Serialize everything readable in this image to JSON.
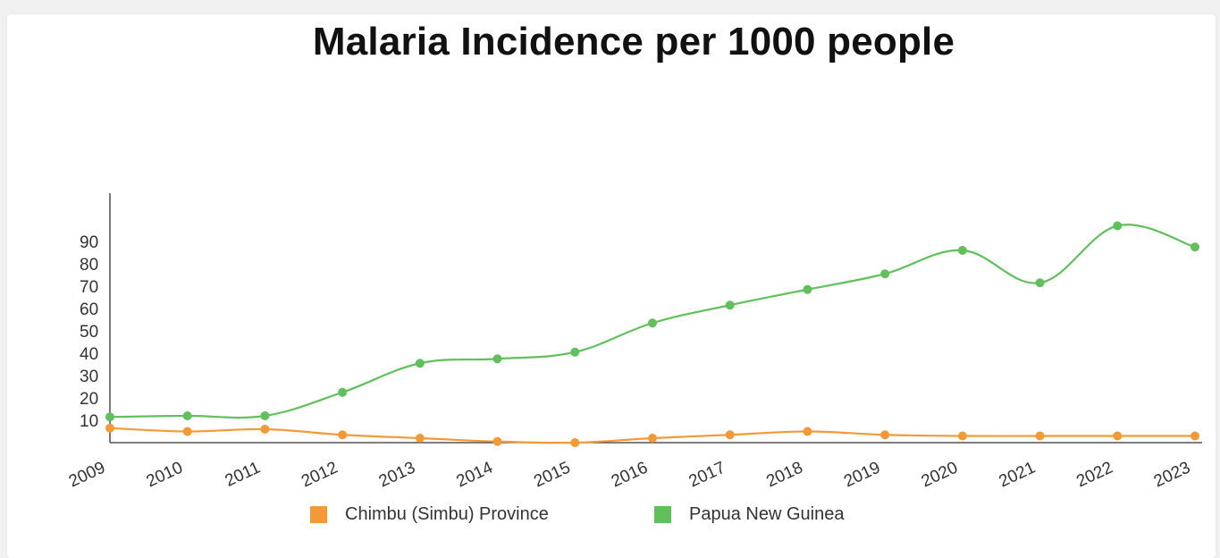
{
  "chart_data": {
    "type": "line",
    "title": "Malaria Incidence per 1000 people",
    "xlabel": "",
    "ylabel": "",
    "x": [
      "2009",
      "2010",
      "2011",
      "2012",
      "2013",
      "2014",
      "2015",
      "2016",
      "2017",
      "2018",
      "2019",
      "2020",
      "2021",
      "2022",
      "2023"
    ],
    "y_ticks": [
      "10",
      "20",
      "30",
      "40",
      "50",
      "60",
      "70",
      "80",
      "90"
    ],
    "ylim": [
      0,
      97
    ],
    "grid": false,
    "legend_position": "bottom",
    "series": [
      {
        "name": "Chimbu (Simbu) Province",
        "color": "#f39a37",
        "values": [
          6.5,
          5,
          6,
          3.5,
          2,
          0.5,
          0,
          2,
          3.5,
          5,
          3.5,
          3,
          3,
          3,
          3
        ]
      },
      {
        "name": "Papua New Guinea",
        "color": "#5fc05c",
        "values": [
          11.5,
          12,
          12,
          22.5,
          35.5,
          37.5,
          40.5,
          53.5,
          61.5,
          68.5,
          75.5,
          86,
          71.5,
          97,
          87.5
        ]
      }
    ]
  }
}
